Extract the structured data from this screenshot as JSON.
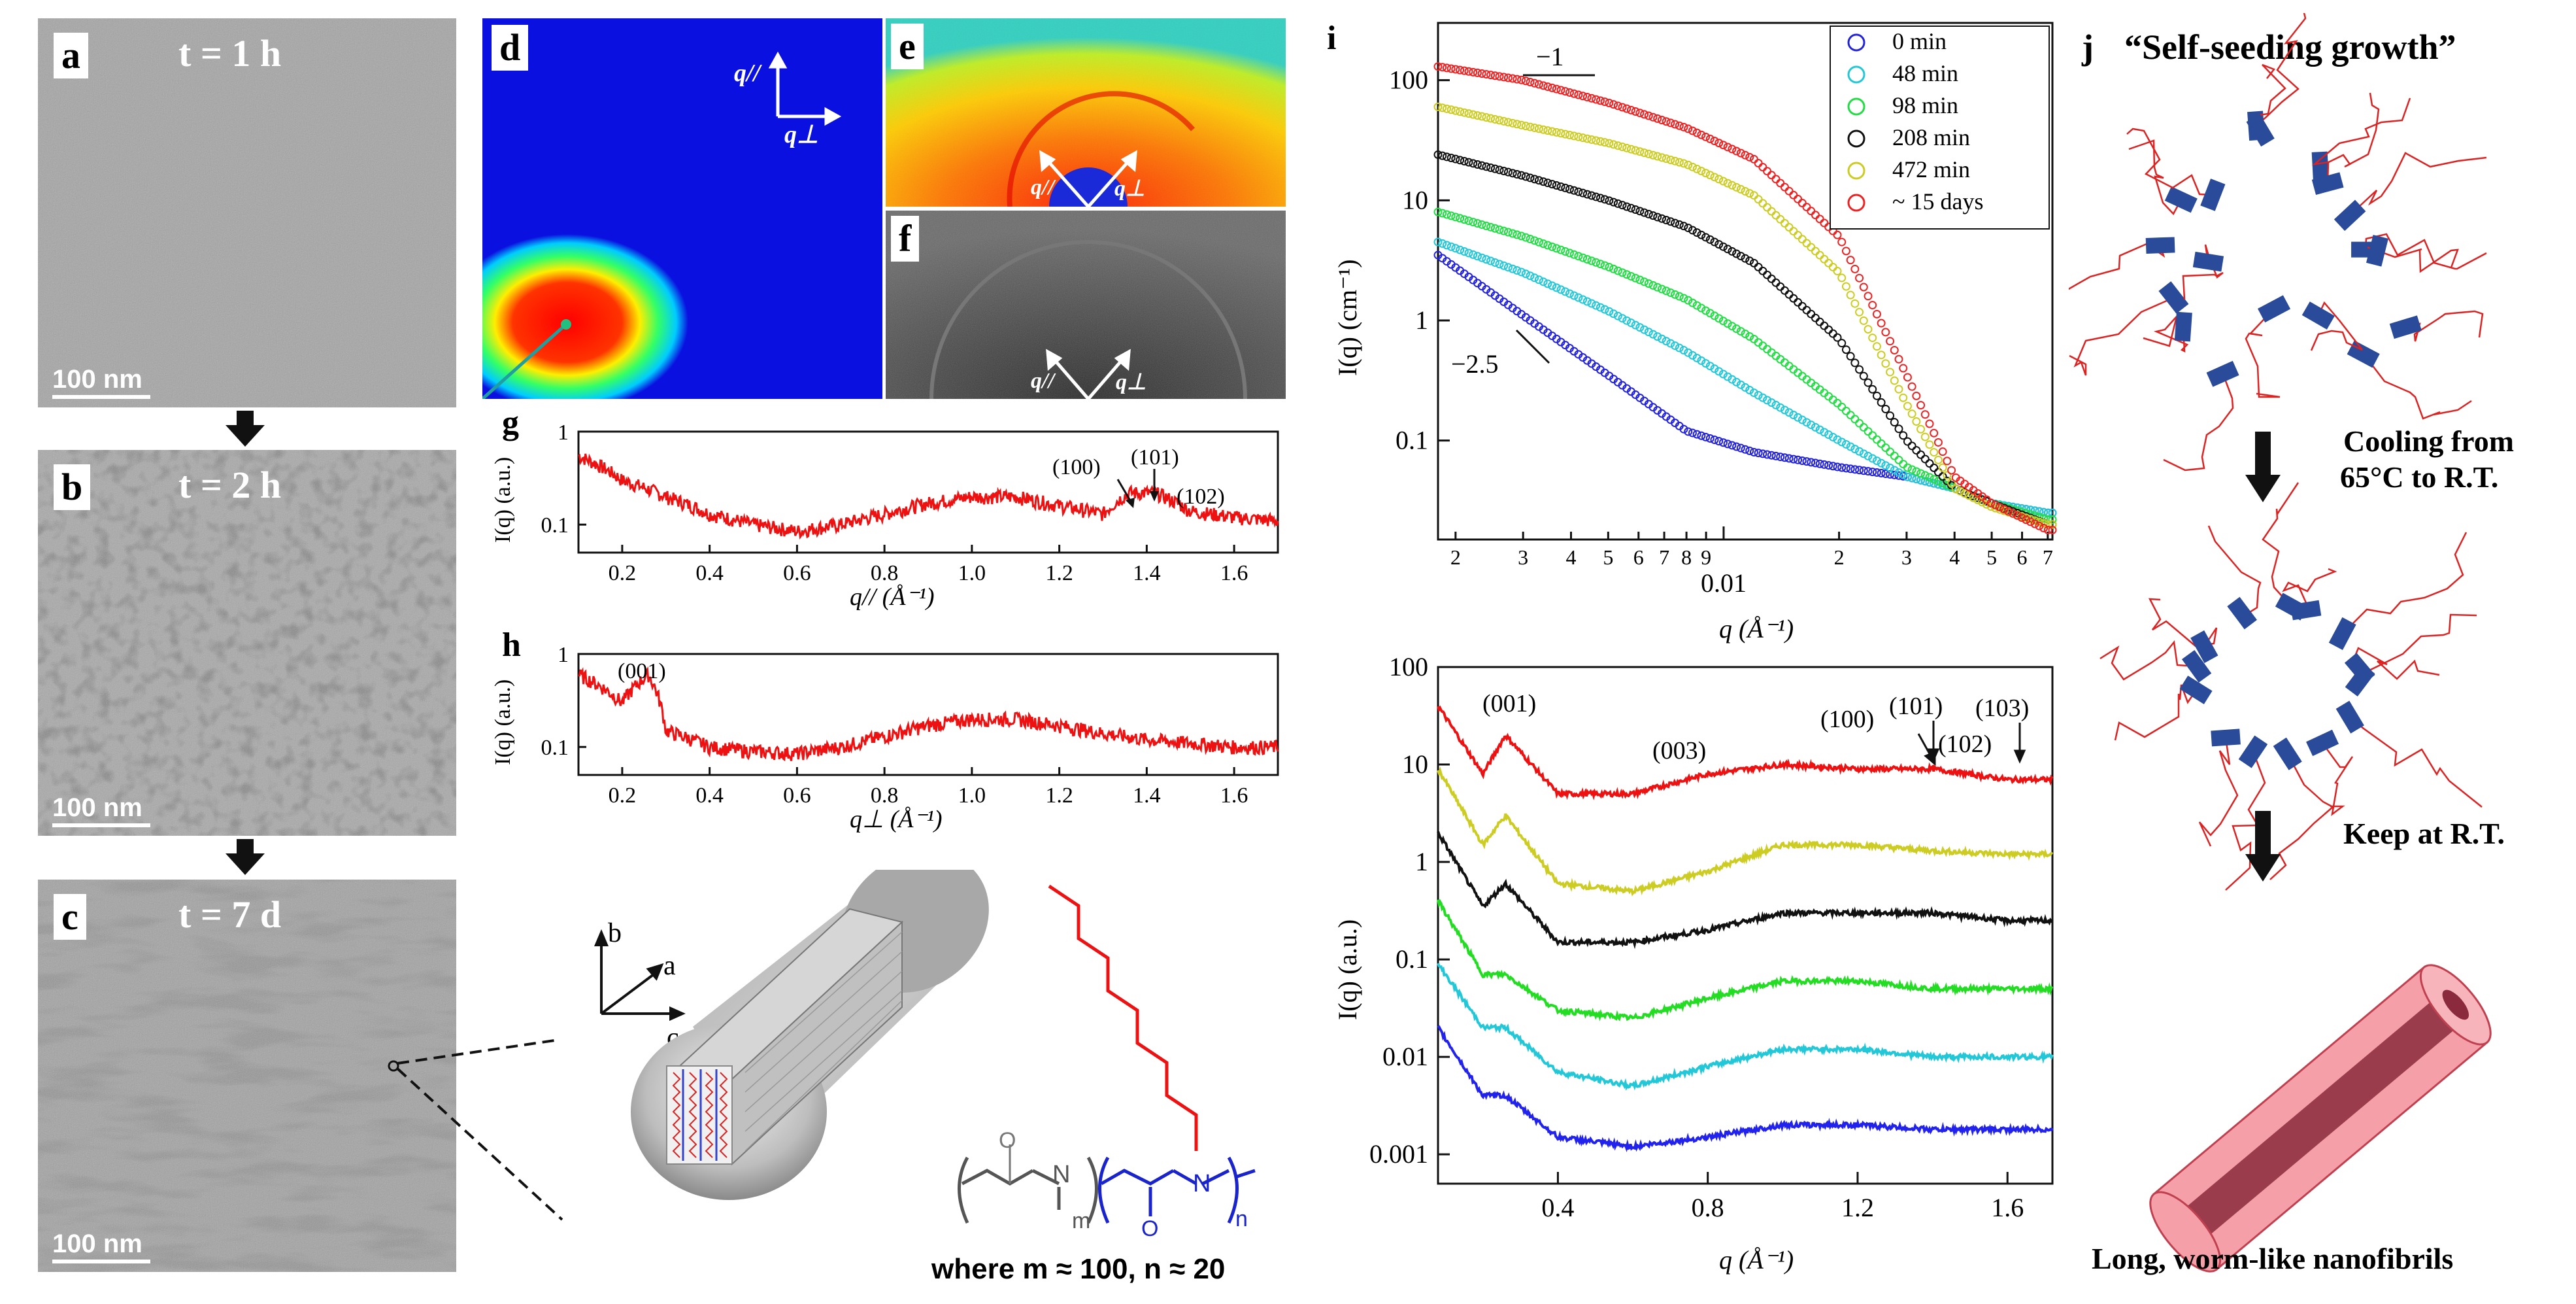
{
  "tem_panels": [
    {
      "label": "a",
      "title": "t = 1 h",
      "scalebar": "100 nm"
    },
    {
      "label": "b",
      "title": "t = 2 h",
      "scalebar": "100 nm"
    },
    {
      "label": "c",
      "title": "t = 7 d",
      "scalebar": "100 nm"
    }
  ],
  "saxs2d": {
    "d": {
      "label": "d",
      "axis_par": "q//",
      "axis_perp": "q⊥"
    },
    "e": {
      "label": "e",
      "axis_par": "q//",
      "axis_perp": "q⊥"
    },
    "f": {
      "label": "f",
      "axis_par": "q//",
      "axis_perp": "q⊥"
    }
  },
  "panel_g": {
    "label": "g",
    "ylabel": "I(q) (a.u.)",
    "xlabel": "q// (Å⁻¹)",
    "peaks": [
      "(100)",
      "(101)",
      "(102)"
    ]
  },
  "panel_h": {
    "label": "h",
    "ylabel": "I(q) (a.u.)",
    "xlabel": "q⊥ (Å⁻¹)",
    "peaks": [
      "(001)"
    ]
  },
  "structure": {
    "axes": [
      "b",
      "a",
      "c"
    ],
    "formula_m": "m",
    "formula_n": "n",
    "caption": "where m ≈ 100, n ≈ 20"
  },
  "panel_i": {
    "label": "i",
    "ylabel": "I(q) (cm⁻¹)",
    "xlabel": "q (Å⁻¹)",
    "slope1": "−1",
    "slope2": "−2.5",
    "legend": [
      "0 min",
      "48 min",
      "98 min",
      "208 min",
      "472 min",
      "~ 15 days"
    ],
    "colors": [
      "#2222dd",
      "#22c8d8",
      "#22dd44",
      "#111111",
      "#cccc22",
      "#ee2222"
    ],
    "top_yticks": [
      "100",
      "10",
      "1",
      "0.1"
    ],
    "top_xmajor": "0.01",
    "top_xminor_left": [
      "2",
      "3",
      "4",
      "5",
      "6",
      "7",
      "8",
      "9"
    ],
    "top_xminor_right": [
      "2",
      "3",
      "4",
      "5",
      "6",
      "7"
    ],
    "bottom_ylabel": "I(q) (a.u.)",
    "bottom_yticks": [
      "100",
      "10",
      "1",
      "0.1",
      "0.01",
      "0.001"
    ],
    "bottom_xticks": [
      "0.4",
      "0.8",
      "1.2",
      "1.6"
    ],
    "bottom_peaks": [
      "(001)",
      "(003)",
      "(100)",
      "(101)",
      "(102)",
      "(103)"
    ]
  },
  "panel_j": {
    "label": "j",
    "title": "“Self-seeding growth”",
    "step1": [
      "Cooling from",
      "65°C to R.T."
    ],
    "step2": "Keep at R.T.",
    "result": "Long, worm-like nanofibrils"
  },
  "chart_data": [
    {
      "type": "line",
      "title": "",
      "xlabel": "q// (Å⁻¹)",
      "ylabel": "I(q) (a.u.)",
      "xlim": [
        0.1,
        1.7
      ],
      "ylim": [
        0.05,
        1
      ],
      "yscale": "log",
      "x": [
        0.1,
        0.2,
        0.3,
        0.4,
        0.5,
        0.6,
        0.7,
        0.8,
        0.9,
        1.0,
        1.1,
        1.2,
        1.3,
        1.36,
        1.42,
        1.5,
        1.6,
        1.7
      ],
      "series": [
        {
          "values": [
            0.55,
            0.3,
            0.2,
            0.13,
            0.1,
            0.085,
            0.1,
            0.13,
            0.17,
            0.2,
            0.2,
            0.16,
            0.13,
            0.22,
            0.22,
            0.14,
            0.12,
            0.11
          ]
        }
      ]
    },
    {
      "type": "line",
      "title": "",
      "xlabel": "q⊥ (Å⁻¹)",
      "ylabel": "I(q) (a.u.)",
      "xlim": [
        0.1,
        1.7
      ],
      "ylim": [
        0.05,
        1
      ],
      "yscale": "log",
      "x": [
        0.1,
        0.2,
        0.26,
        0.3,
        0.4,
        0.5,
        0.6,
        0.7,
        0.8,
        0.9,
        1.0,
        1.1,
        1.2,
        1.3,
        1.4,
        1.5,
        1.6,
        1.7
      ],
      "series": [
        {
          "values": [
            0.6,
            0.3,
            0.6,
            0.15,
            0.1,
            0.09,
            0.085,
            0.1,
            0.13,
            0.17,
            0.2,
            0.2,
            0.17,
            0.14,
            0.12,
            0.11,
            0.1,
            0.1
          ]
        }
      ]
    },
    {
      "type": "scatter",
      "title": "",
      "xlabel": "q (Å⁻¹)",
      "ylabel": "I(q) (cm⁻¹)",
      "xscale": "log",
      "yscale": "log",
      "xlim": [
        0.0018,
        0.072
      ],
      "ylim": [
        0.015,
        300
      ],
      "x": [
        0.0018,
        0.003,
        0.005,
        0.008,
        0.012,
        0.02,
        0.03,
        0.04,
        0.05,
        0.07
      ],
      "series": [
        {
          "name": "0 min",
          "values": [
            3.5,
            1.1,
            0.35,
            0.12,
            0.08,
            0.06,
            0.05,
            0.04,
            0.03,
            0.025
          ]
        },
        {
          "name": "48 min",
          "values": [
            4.5,
            2.5,
            1.2,
            0.55,
            0.25,
            0.1,
            0.05,
            0.04,
            0.03,
            0.025
          ]
        },
        {
          "name": "98 min",
          "values": [
            8,
            5,
            2.8,
            1.5,
            0.7,
            0.2,
            0.06,
            0.04,
            0.03,
            0.022
          ]
        },
        {
          "name": "208 min",
          "values": [
            24,
            16,
            10,
            6,
            3,
            0.7,
            0.1,
            0.04,
            0.03,
            0.02
          ]
        },
        {
          "name": "472 min",
          "values": [
            60,
            42,
            30,
            20,
            11,
            2.5,
            0.2,
            0.04,
            0.028,
            0.02
          ]
        },
        {
          "name": "~ 15 days",
          "values": [
            130,
            100,
            65,
            40,
            22,
            5,
            0.35,
            0.05,
            0.03,
            0.018
          ]
        }
      ]
    },
    {
      "type": "line",
      "title": "",
      "xlabel": "q (Å⁻¹)",
      "ylabel": "I(q) (a.u.)",
      "yscale": "log",
      "xlim": [
        0.08,
        1.72
      ],
      "ylim": [
        0.0005,
        100
      ],
      "x": [
        0.08,
        0.2,
        0.26,
        0.4,
        0.6,
        0.8,
        1.0,
        1.2,
        1.4,
        1.6,
        1.72
      ],
      "series": [
        {
          "name": "~ 15 days",
          "values": [
            40,
            8,
            20,
            5,
            5,
            8,
            10,
            9,
            9,
            7,
            7
          ]
        },
        {
          "name": "472 min",
          "values": [
            9,
            1.5,
            3,
            0.6,
            0.5,
            0.8,
            1.5,
            1.5,
            1.3,
            1.2,
            1.2
          ]
        },
        {
          "name": "208 min",
          "values": [
            2,
            0.35,
            0.6,
            0.15,
            0.15,
            0.2,
            0.3,
            0.3,
            0.3,
            0.25,
            0.25
          ]
        },
        {
          "name": "98 min",
          "values": [
            0.4,
            0.07,
            0.07,
            0.03,
            0.025,
            0.04,
            0.06,
            0.06,
            0.05,
            0.05,
            0.05
          ]
        },
        {
          "name": "48 min",
          "values": [
            0.09,
            0.02,
            0.02,
            0.007,
            0.005,
            0.008,
            0.012,
            0.012,
            0.01,
            0.01,
            0.01
          ]
        },
        {
          "name": "0 min",
          "values": [
            0.02,
            0.004,
            0.004,
            0.0015,
            0.0012,
            0.0015,
            0.002,
            0.002,
            0.0018,
            0.0018,
            0.0018
          ]
        }
      ]
    }
  ]
}
